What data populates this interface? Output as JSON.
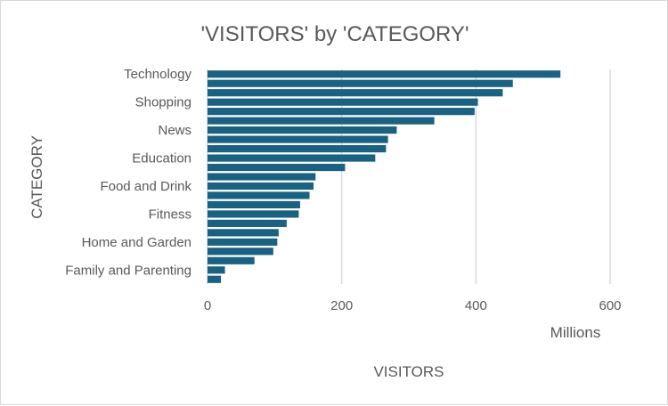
{
  "chart_data": {
    "type": "bar",
    "orientation": "horizontal",
    "title": "'VISITORS' by 'CATEGORY'",
    "xlabel": "VISITORS",
    "ylabel": "CATEGORY",
    "x_units_label": "Millions",
    "xlim": [
      0,
      600
    ],
    "x_ticks": [
      0,
      200,
      400,
      600
    ],
    "grid": true,
    "legend": "none",
    "bar_color": "#1b6181",
    "visible_category_labels": [
      "Technology",
      "Shopping",
      "News",
      "Education",
      "Food and Drink",
      "Fitness",
      "Home and Garden",
      "Family and Parenting"
    ],
    "values": [
      526,
      455,
      440,
      403,
      398,
      338,
      282,
      269,
      266,
      250,
      205,
      161,
      158,
      152,
      138,
      136,
      118,
      106,
      104,
      98,
      70,
      26,
      20
    ]
  }
}
